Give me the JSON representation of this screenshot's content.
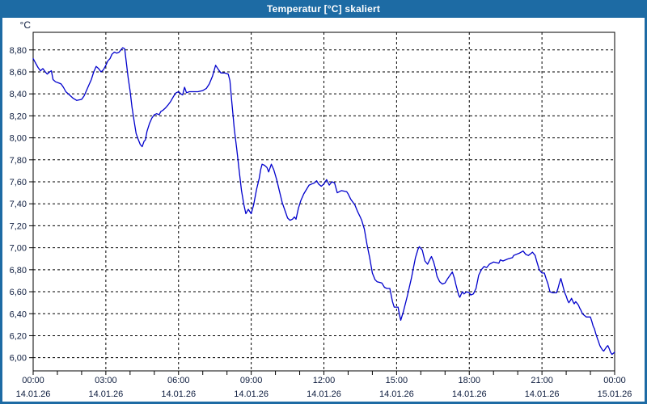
{
  "window": {
    "title": "Temperatur [°C] skaliert"
  },
  "colors": {
    "titlebar": "#1d6ba4",
    "window_border": "#1d6ba4",
    "plot_background": "#ffffff",
    "line": "#0000cc",
    "grid": "#000000",
    "axis": "#000000",
    "tick_label": "#0d1c3e"
  },
  "chart_data": {
    "type": "line",
    "title": "Temperatur [°C] skaliert",
    "ylabel": "°C",
    "xlabel": "",
    "grid": "dashed",
    "legend_position": "none",
    "xlim_hours": [
      0,
      24
    ],
    "ylim": [
      5.88,
      8.96
    ],
    "y_ticks": [
      {
        "value": 8.8,
        "label": "8,80"
      },
      {
        "value": 8.6,
        "label": "8,60"
      },
      {
        "value": 8.4,
        "label": "8,40"
      },
      {
        "value": 8.2,
        "label": "8,20"
      },
      {
        "value": 8.0,
        "label": "8,00"
      },
      {
        "value": 7.8,
        "label": "7,80"
      },
      {
        "value": 7.6,
        "label": "7,60"
      },
      {
        "value": 7.4,
        "label": "7,40"
      },
      {
        "value": 7.2,
        "label": "7,20"
      },
      {
        "value": 7.0,
        "label": "7,00"
      },
      {
        "value": 6.8,
        "label": "6,80"
      },
      {
        "value": 6.6,
        "label": "6,60"
      },
      {
        "value": 6.4,
        "label": "6,40"
      },
      {
        "value": 6.2,
        "label": "6,20"
      },
      {
        "value": 6.0,
        "label": "6,00"
      }
    ],
    "x_ticks": [
      {
        "hour": 0,
        "time": "00:00",
        "date": "14.01.26"
      },
      {
        "hour": 3,
        "time": "03:00",
        "date": "14.01.26"
      },
      {
        "hour": 6,
        "time": "06:00",
        "date": "14.01.26"
      },
      {
        "hour": 9,
        "time": "09:00",
        "date": "14.01.26"
      },
      {
        "hour": 12,
        "time": "12:00",
        "date": "14.01.26"
      },
      {
        "hour": 15,
        "time": "15:00",
        "date": "14.01.26"
      },
      {
        "hour": 18,
        "time": "18:00",
        "date": "14.01.26"
      },
      {
        "hour": 21,
        "time": "21:00",
        "date": "14.01.26"
      },
      {
        "hour": 24,
        "time": "00:00",
        "date": "15.01.26"
      }
    ],
    "x_minor_tick_every_hours": 1,
    "series": [
      {
        "name": "Temperatur",
        "unit": "°C",
        "points": [
          [
            0,
            8.72
          ],
          [
            0.1,
            8.68
          ],
          [
            0.2,
            8.64
          ],
          [
            0.3,
            8.61
          ],
          [
            0.4,
            8.63
          ],
          [
            0.5,
            8.6
          ],
          [
            0.58,
            8.58
          ],
          [
            0.68,
            8.6
          ],
          [
            0.75,
            8.61
          ],
          [
            0.82,
            8.53
          ],
          [
            0.92,
            8.51
          ],
          [
            1.05,
            8.5
          ],
          [
            1.15,
            8.49
          ],
          [
            1.25,
            8.46
          ],
          [
            1.35,
            8.42
          ],
          [
            1.5,
            8.39
          ],
          [
            1.65,
            8.36
          ],
          [
            1.8,
            8.34
          ],
          [
            2.0,
            8.35
          ],
          [
            2.1,
            8.38
          ],
          [
            2.2,
            8.43
          ],
          [
            2.3,
            8.48
          ],
          [
            2.4,
            8.53
          ],
          [
            2.5,
            8.6
          ],
          [
            2.6,
            8.65
          ],
          [
            2.7,
            8.63
          ],
          [
            2.8,
            8.6
          ],
          [
            2.9,
            8.62
          ],
          [
            3.0,
            8.66
          ],
          [
            3.08,
            8.7
          ],
          [
            3.17,
            8.72
          ],
          [
            3.25,
            8.76
          ],
          [
            3.35,
            8.78
          ],
          [
            3.45,
            8.77
          ],
          [
            3.55,
            8.78
          ],
          [
            3.62,
            8.8
          ],
          [
            3.7,
            8.82
          ],
          [
            3.78,
            8.81
          ],
          [
            3.85,
            8.68
          ],
          [
            3.92,
            8.55
          ],
          [
            4.0,
            8.43
          ],
          [
            4.08,
            8.28
          ],
          [
            4.17,
            8.15
          ],
          [
            4.25,
            8.04
          ],
          [
            4.33,
            7.99
          ],
          [
            4.42,
            7.94
          ],
          [
            4.5,
            7.92
          ],
          [
            4.58,
            7.97
          ],
          [
            4.63,
            7.98
          ],
          [
            4.7,
            8.06
          ],
          [
            4.8,
            8.13
          ],
          [
            4.9,
            8.18
          ],
          [
            5.0,
            8.21
          ],
          [
            5.1,
            8.22
          ],
          [
            5.2,
            8.21
          ],
          [
            5.27,
            8.24
          ],
          [
            5.35,
            8.25
          ],
          [
            5.45,
            8.27
          ],
          [
            5.57,
            8.3
          ],
          [
            5.67,
            8.33
          ],
          [
            5.8,
            8.38
          ],
          [
            5.9,
            8.41
          ],
          [
            6.0,
            8.42
          ],
          [
            6.1,
            8.4
          ],
          [
            6.17,
            8.39
          ],
          [
            6.25,
            8.46
          ],
          [
            6.33,
            8.41
          ],
          [
            6.45,
            8.42
          ],
          [
            6.6,
            8.42
          ],
          [
            6.8,
            8.42
          ],
          [
            7.0,
            8.43
          ],
          [
            7.15,
            8.45
          ],
          [
            7.27,
            8.49
          ],
          [
            7.4,
            8.56
          ],
          [
            7.53,
            8.66
          ],
          [
            7.65,
            8.62
          ],
          [
            7.75,
            8.59
          ],
          [
            7.9,
            8.59
          ],
          [
            8.05,
            8.58
          ],
          [
            8.12,
            8.52
          ],
          [
            8.2,
            8.32
          ],
          [
            8.3,
            8.08
          ],
          [
            8.4,
            7.9
          ],
          [
            8.5,
            7.71
          ],
          [
            8.6,
            7.52
          ],
          [
            8.7,
            7.39
          ],
          [
            8.78,
            7.31
          ],
          [
            8.88,
            7.35
          ],
          [
            9.0,
            7.31
          ],
          [
            9.1,
            7.39
          ],
          [
            9.22,
            7.53
          ],
          [
            9.33,
            7.63
          ],
          [
            9.39,
            7.71
          ],
          [
            9.45,
            7.76
          ],
          [
            9.55,
            7.75
          ],
          [
            9.65,
            7.73
          ],
          [
            9.72,
            7.69
          ],
          [
            9.83,
            7.76
          ],
          [
            9.93,
            7.71
          ],
          [
            10.05,
            7.62
          ],
          [
            10.17,
            7.51
          ],
          [
            10.28,
            7.41
          ],
          [
            10.39,
            7.34
          ],
          [
            10.5,
            7.27
          ],
          [
            10.6,
            7.25
          ],
          [
            10.7,
            7.26
          ],
          [
            10.78,
            7.28
          ],
          [
            10.85,
            7.26
          ],
          [
            10.95,
            7.36
          ],
          [
            11.05,
            7.43
          ],
          [
            11.17,
            7.49
          ],
          [
            11.28,
            7.53
          ],
          [
            11.39,
            7.57
          ],
          [
            11.5,
            7.58
          ],
          [
            11.61,
            7.59
          ],
          [
            11.7,
            7.61
          ],
          [
            11.78,
            7.58
          ],
          [
            11.89,
            7.56
          ],
          [
            12.0,
            7.58
          ],
          [
            12.11,
            7.62
          ],
          [
            12.22,
            7.57
          ],
          [
            12.33,
            7.6
          ],
          [
            12.44,
            7.59
          ],
          [
            12.55,
            7.5
          ],
          [
            12.72,
            7.52
          ],
          [
            12.94,
            7.51
          ],
          [
            13.0,
            7.49
          ],
          [
            13.11,
            7.44
          ],
          [
            13.28,
            7.39
          ],
          [
            13.39,
            7.33
          ],
          [
            13.5,
            7.28
          ],
          [
            13.56,
            7.25
          ],
          [
            13.67,
            7.17
          ],
          [
            13.78,
            7.03
          ],
          [
            13.89,
            6.91
          ],
          [
            14.0,
            6.77
          ],
          [
            14.11,
            6.71
          ],
          [
            14.2,
            6.69
          ],
          [
            14.39,
            6.68
          ],
          [
            14.5,
            6.64
          ],
          [
            14.6,
            6.63
          ],
          [
            14.72,
            6.63
          ],
          [
            14.83,
            6.51
          ],
          [
            14.9,
            6.46
          ],
          [
            15.06,
            6.46
          ],
          [
            15.11,
            6.4
          ],
          [
            15.17,
            6.34
          ],
          [
            15.28,
            6.42
          ],
          [
            15.44,
            6.56
          ],
          [
            15.61,
            6.72
          ],
          [
            15.78,
            6.91
          ],
          [
            15.89,
            6.99
          ],
          [
            15.94,
            7.01
          ],
          [
            16.06,
            6.98
          ],
          [
            16.17,
            6.88
          ],
          [
            16.28,
            6.85
          ],
          [
            16.39,
            6.9
          ],
          [
            16.44,
            6.92
          ],
          [
            16.53,
            6.87
          ],
          [
            16.59,
            6.82
          ],
          [
            16.67,
            6.74
          ],
          [
            16.78,
            6.69
          ],
          [
            16.89,
            6.67
          ],
          [
            17.0,
            6.68
          ],
          [
            17.11,
            6.72
          ],
          [
            17.3,
            6.78
          ],
          [
            17.39,
            6.72
          ],
          [
            17.44,
            6.67
          ],
          [
            17.56,
            6.57
          ],
          [
            17.61,
            6.55
          ],
          [
            17.67,
            6.58
          ],
          [
            17.72,
            6.6
          ],
          [
            17.78,
            6.58
          ],
          [
            17.89,
            6.6
          ],
          [
            18.0,
            6.59
          ],
          [
            18.06,
            6.57
          ],
          [
            18.17,
            6.58
          ],
          [
            18.28,
            6.63
          ],
          [
            18.39,
            6.75
          ],
          [
            18.5,
            6.8
          ],
          [
            18.61,
            6.83
          ],
          [
            18.72,
            6.82
          ],
          [
            18.83,
            6.85
          ],
          [
            19.0,
            6.87
          ],
          [
            19.22,
            6.86
          ],
          [
            19.28,
            6.89
          ],
          [
            19.39,
            6.88
          ],
          [
            19.5,
            6.89
          ],
          [
            19.61,
            6.9
          ],
          [
            19.78,
            6.91
          ],
          [
            19.83,
            6.93
          ],
          [
            19.94,
            6.94
          ],
          [
            20.06,
            6.95
          ],
          [
            20.22,
            6.97
          ],
          [
            20.33,
            6.94
          ],
          [
            20.44,
            6.93
          ],
          [
            20.56,
            6.95
          ],
          [
            20.61,
            6.96
          ],
          [
            20.72,
            6.93
          ],
          [
            20.78,
            6.88
          ],
          [
            20.89,
            6.8
          ],
          [
            21.0,
            6.77
          ],
          [
            21.1,
            6.77
          ],
          [
            21.17,
            6.72
          ],
          [
            21.25,
            6.67
          ],
          [
            21.33,
            6.6
          ],
          [
            21.45,
            6.59
          ],
          [
            21.6,
            6.59
          ],
          [
            21.66,
            6.63
          ],
          [
            21.72,
            6.68
          ],
          [
            21.78,
            6.72
          ],
          [
            21.83,
            6.68
          ],
          [
            21.89,
            6.63
          ],
          [
            21.94,
            6.59
          ],
          [
            22.0,
            6.56
          ],
          [
            22.06,
            6.52
          ],
          [
            22.11,
            6.5
          ],
          [
            22.17,
            6.52
          ],
          [
            22.22,
            6.54
          ],
          [
            22.28,
            6.51
          ],
          [
            22.33,
            6.49
          ],
          [
            22.39,
            6.51
          ],
          [
            22.5,
            6.48
          ],
          [
            22.56,
            6.45
          ],
          [
            22.61,
            6.43
          ],
          [
            22.67,
            6.4
          ],
          [
            22.72,
            6.39
          ],
          [
            22.83,
            6.37
          ],
          [
            23.0,
            6.37
          ],
          [
            23.06,
            6.33
          ],
          [
            23.11,
            6.29
          ],
          [
            23.17,
            6.26
          ],
          [
            23.22,
            6.22
          ],
          [
            23.28,
            6.18
          ],
          [
            23.33,
            6.15
          ],
          [
            23.39,
            6.11
          ],
          [
            23.44,
            6.09
          ],
          [
            23.5,
            6.07
          ],
          [
            23.55,
            6.06
          ],
          [
            23.61,
            6.08
          ],
          [
            23.67,
            6.1
          ],
          [
            23.72,
            6.11
          ],
          [
            23.78,
            6.08
          ],
          [
            23.83,
            6.05
          ],
          [
            23.89,
            6.03
          ],
          [
            24.0,
            6.05
          ]
        ]
      }
    ]
  }
}
